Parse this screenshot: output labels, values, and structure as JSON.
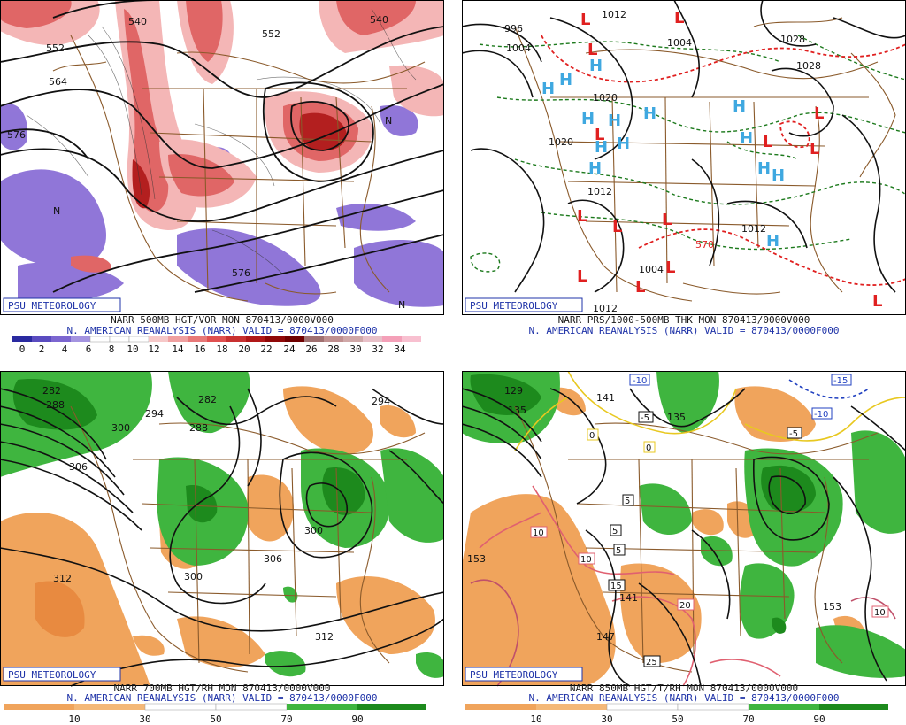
{
  "colors": {
    "vor_pos_light": "#f4b6b6",
    "vor_pos_mid": "#e06666",
    "vor_pos_dark": "#b31f1f",
    "vor_neg": "#8b6fd6",
    "rh_dry": "#f0a45c",
    "rh_moist": "#3fb53f",
    "rh_dark": "#1d8a1d",
    "high_marker": "#3fa8e0",
    "low_marker": "#e02020",
    "border": "#8a5a2b",
    "brand": "#1f33a8"
  },
  "panels": [
    {
      "brand": "PSU METEOROLOGY",
      "caption_line1": "NARR 500MB HGT/VOR MON 870413/0000V000",
      "caption_line2": "N. AMERICAN REANALYSIS (NARR) VALID = 870413/0000F000",
      "colorbar_ticks": [
        "0",
        "2",
        "4",
        "6",
        "8",
        "10",
        "12",
        "14",
        "16",
        "18",
        "20",
        "22",
        "24",
        "26",
        "28",
        "30",
        "32",
        "34"
      ],
      "contour_labels": [
        "540",
        "552",
        "564",
        "576",
        "576",
        "540",
        "552",
        "N",
        "N",
        "N"
      ]
    },
    {
      "brand": "PSU METEOROLOGY",
      "caption_line1": "NARR PRS/1000-500MB THK MON 870413/0000V000",
      "caption_line2": "N. AMERICAN REANALYSIS (NARR) VALID = 870413/0000F000",
      "contour_labels": [
        "1012",
        "996",
        "1004",
        "1004",
        "1028",
        "1020",
        "1020",
        "1028",
        "1012",
        "1012",
        "1004",
        "570",
        "1012"
      ],
      "highs": [
        "H",
        "H",
        "H",
        "H",
        "H",
        "H",
        "H",
        "H",
        "H",
        "H",
        "H",
        "H",
        "H",
        "H"
      ],
      "lows": [
        "L",
        "L",
        "L",
        "L",
        "L",
        "L",
        "L",
        "L",
        "L",
        "L",
        "L",
        "L",
        "L",
        "L"
      ]
    },
    {
      "brand": "PSU METEOROLOGY",
      "caption_line1": "NARR 700MB HGT/RH MON 870413/0000V000",
      "caption_line2": "N. AMERICAN REANALYSIS (NARR) VALID = 870413/0000F000",
      "colorbar_ticks": [
        "10",
        "30",
        "50",
        "70",
        "90"
      ],
      "contour_labels": [
        "282",
        "288",
        "294",
        "282",
        "288",
        "300",
        "306",
        "294",
        "300",
        "306",
        "300",
        "312",
        "312"
      ]
    },
    {
      "brand": "PSU METEOROLOGY",
      "caption_line1": "NARR 850MB HGT/T/RH MON 870413/0000V000",
      "caption_line2": "N. AMERICAN REANALYSIS (NARR) VALID = 870413/0000F000",
      "colorbar_ticks": [
        "10",
        "30",
        "50",
        "70",
        "90"
      ],
      "contour_labels": [
        "129",
        "135",
        "141",
        "135",
        "153",
        "147",
        "153",
        "141"
      ],
      "temp_labels": [
        "-10",
        "-5",
        "-5",
        "-10",
        "-15",
        "0",
        "0",
        "5",
        "5",
        "5",
        "10",
        "10",
        "15",
        "20",
        "25",
        "10"
      ]
    }
  ]
}
